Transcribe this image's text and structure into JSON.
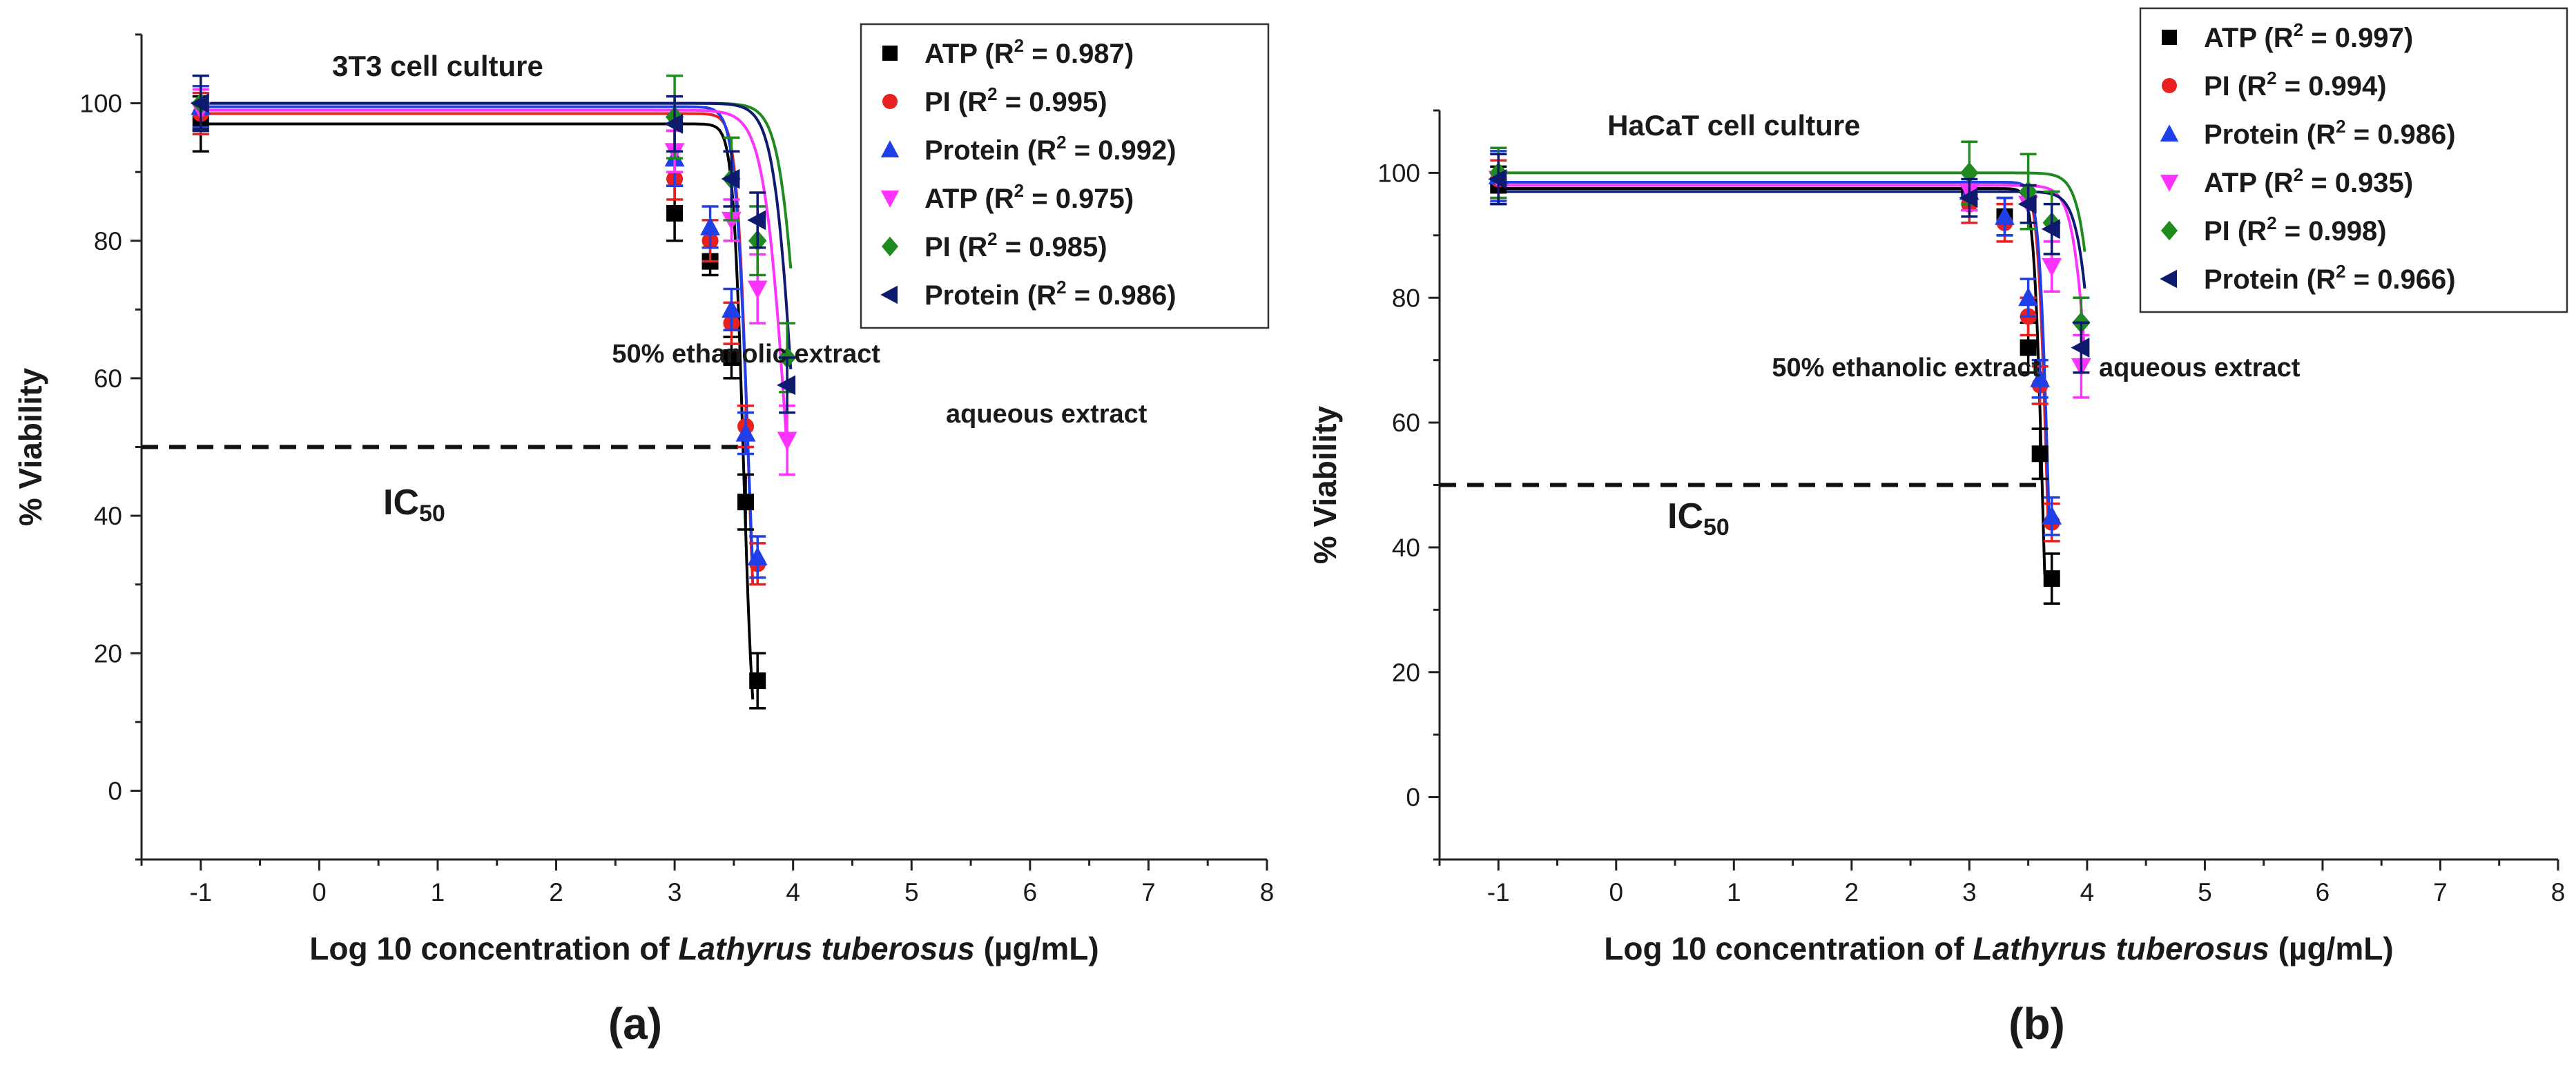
{
  "figure": {
    "panels": [
      "(a)",
      "(b)"
    ]
  },
  "chart_data": [
    {
      "type": "scatter",
      "panel_label": "(a)",
      "title": "3T3 cell culture",
      "xlabel_prefix": "Log 10 concentration of ",
      "xlabel_italic": "Lathyrus tuberosus",
      "xlabel_suffix": " (µg/mL)",
      "ylabel": "% Viability",
      "xlim": [
        -1.5,
        8
      ],
      "ylim": [
        -10,
        110
      ],
      "xticks": [
        -1,
        0,
        1,
        2,
        3,
        4,
        5,
        6,
        7,
        8
      ],
      "yticks": [
        0,
        20,
        40,
        60,
        80,
        100
      ],
      "ic50": {
        "label": "IC",
        "sub": "50",
        "y": 50,
        "x_end": 3.6
      },
      "annotations": [
        "50% ethanolic extract",
        "aqueous extract"
      ],
      "series": [
        {
          "name": "ATP",
          "r2": "0.987",
          "color": "#000000",
          "marker": "square",
          "extract": "50% ethanolic extract",
          "x": [
            -1,
            3.0,
            3.3,
            3.48,
            3.6,
            3.7
          ],
          "y": [
            97,
            84,
            77,
            63,
            42,
            16
          ],
          "err": [
            4,
            4,
            2,
            3,
            4,
            4
          ],
          "fit": {
            "top": 97,
            "ic50": 3.58,
            "hill": 10
          }
        },
        {
          "name": "PI",
          "r2": "0.995",
          "color": "#e8201f",
          "marker": "circle",
          "extract": "50% ethanolic extract",
          "x": [
            -1,
            3.0,
            3.3,
            3.48,
            3.6,
            3.7
          ],
          "y": [
            98.5,
            89,
            80,
            68,
            53,
            33
          ],
          "err": [
            3,
            3,
            3,
            3,
            3,
            3
          ],
          "fit": {
            "top": 98.5,
            "ic50": 3.62,
            "hill": 9
          }
        },
        {
          "name": "Protein",
          "r2": "0.992",
          "color": "#1f3fe8",
          "marker": "triangle-up",
          "extract": "50% ethanolic extract",
          "x": [
            -1,
            3.0,
            3.3,
            3.48,
            3.6,
            3.7
          ],
          "y": [
            99.5,
            92,
            82,
            70,
            52,
            34
          ],
          "err": [
            3,
            4,
            3,
            3,
            3,
            3
          ],
          "fit": {
            "top": 99.5,
            "ic50": 3.62,
            "hill": 8
          }
        },
        {
          "name": "ATP",
          "r2": "0.975",
          "color": "#ff33ff",
          "marker": "triangle-down",
          "extract": "aqueous extract",
          "x": [
            -1,
            3.0,
            3.48,
            3.7,
            3.95
          ],
          "y": [
            99,
            93,
            83,
            73,
            51
          ],
          "err": [
            3,
            3,
            3,
            5,
            5
          ],
          "fit": {
            "top": 99,
            "ic50": 3.95,
            "hill": 4.5
          }
        },
        {
          "name": "PI",
          "r2": "0.985",
          "color": "#1f8a1f",
          "marker": "diamond",
          "extract": "aqueous extract",
          "x": [
            -1,
            3.0,
            3.48,
            3.7,
            3.95
          ],
          "y": [
            100,
            98,
            89,
            80,
            63
          ],
          "err": [
            4,
            6,
            6,
            5,
            5
          ],
          "fit": {
            "top": 100,
            "ic50": 4.08,
            "hill": 5
          }
        },
        {
          "name": "Protein",
          "r2": "0.986",
          "color": "#0d1a6e",
          "marker": "triangle-left",
          "extract": "aqueous extract",
          "x": [
            -1,
            3.0,
            3.48,
            3.7,
            3.95
          ],
          "y": [
            100,
            97,
            89,
            83,
            59
          ],
          "err": [
            4,
            4,
            4,
            4,
            4
          ],
          "fit": {
            "top": 100,
            "ic50": 4.02,
            "hill": 5
          }
        }
      ]
    },
    {
      "type": "scatter",
      "panel_label": "(b)",
      "title": "HaCaT cell culture",
      "xlabel_prefix": "Log 10 concentration of ",
      "xlabel_italic": "Lathyrus tuberosus",
      "xlabel_suffix": " (µg/mL)",
      "ylabel": "% Viability",
      "xlim": [
        -1.5,
        8
      ],
      "ylim": [
        -10,
        110
      ],
      "xticks": [
        -1,
        0,
        1,
        2,
        3,
        4,
        5,
        6,
        7,
        8
      ],
      "yticks": [
        0,
        20,
        40,
        60,
        80,
        100
      ],
      "ic50": {
        "label": "IC",
        "sub": "50",
        "y": 50,
        "x_end": 3.65
      },
      "annotations": [
        "50% ethanolic extract",
        "aqueous extract"
      ],
      "series": [
        {
          "name": "ATP",
          "r2": "0.997",
          "color": "#000000",
          "marker": "square",
          "extract": "50% ethanolic extract",
          "x": [
            -1,
            3.0,
            3.3,
            3.5,
            3.6,
            3.7
          ],
          "y": [
            98,
            97,
            93,
            72,
            55,
            35
          ],
          "err": [
            3,
            3,
            3,
            4,
            4,
            4
          ],
          "fit": {
            "top": 97.5,
            "ic50": 3.62,
            "hill": 12
          }
        },
        {
          "name": "PI",
          "r2": "0.994",
          "color": "#e8201f",
          "marker": "circle",
          "extract": "50% ethanolic extract",
          "x": [
            -1,
            3.0,
            3.3,
            3.5,
            3.6,
            3.7
          ],
          "y": [
            99,
            95,
            92,
            77,
            66,
            44
          ],
          "err": [
            3,
            3,
            3,
            3,
            3,
            3
          ],
          "fit": {
            "top": 98.5,
            "ic50": 3.66,
            "hill": 11
          }
        },
        {
          "name": "Protein",
          "r2": "0.986",
          "color": "#1f3fe8",
          "marker": "triangle-up",
          "extract": "50% ethanolic extract",
          "x": [
            -1,
            3.0,
            3.3,
            3.5,
            3.6,
            3.7
          ],
          "y": [
            99.5,
            97,
            93,
            80,
            67,
            45
          ],
          "err": [
            4,
            3,
            3,
            3,
            3,
            3
          ],
          "fit": {
            "top": 98.5,
            "ic50": 3.67,
            "hill": 11
          }
        },
        {
          "name": "ATP",
          "r2": "0.935",
          "color": "#ff33ff",
          "marker": "triangle-down",
          "extract": "aqueous extract",
          "x": [
            -1,
            3.0,
            3.5,
            3.7,
            3.95
          ],
          "y": [
            99,
            97,
            95,
            85,
            69
          ],
          "err": [
            4,
            3,
            3,
            4,
            5
          ],
          "fit": {
            "top": 98,
            "ic50": 4.05,
            "hill": 6
          }
        },
        {
          "name": "PI",
          "r2": "0.998",
          "color": "#1f8a1f",
          "marker": "diamond",
          "extract": "aqueous extract",
          "x": [
            -1,
            3.0,
            3.5,
            3.7,
            3.95
          ],
          "y": [
            100,
            100,
            97,
            92,
            76
          ],
          "err": [
            4,
            5,
            6,
            5,
            4
          ],
          "fit": {
            "top": 100,
            "ic50": 4.12,
            "hill": 6
          }
        },
        {
          "name": "Protein",
          "r2": "0.966",
          "color": "#0d1a6e",
          "marker": "triangle-left",
          "extract": "aqueous extract",
          "x": [
            -1,
            3.0,
            3.5,
            3.7,
            3.95
          ],
          "y": [
            99,
            96,
            95,
            91,
            72
          ],
          "err": [
            4,
            3,
            3,
            4,
            4
          ],
          "fit": {
            "top": 97,
            "ic50": 4.1,
            "hill": 6
          }
        }
      ]
    }
  ]
}
